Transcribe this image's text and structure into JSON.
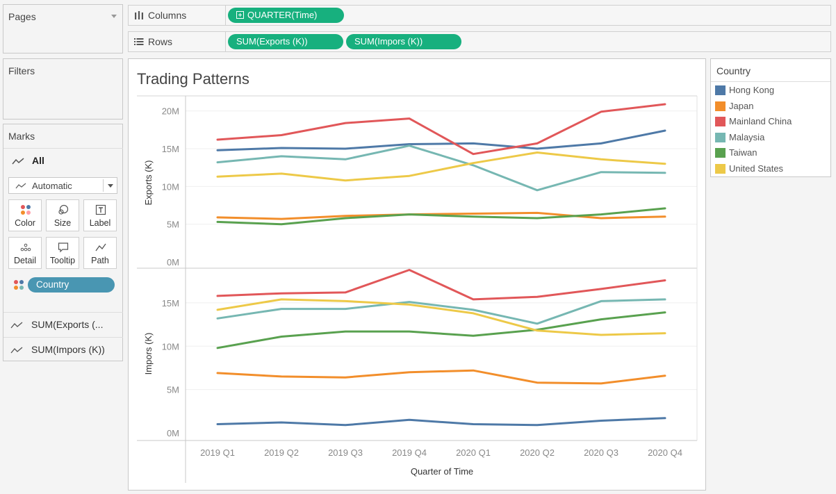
{
  "pages": {
    "title": "Pages"
  },
  "filters": {
    "title": "Filters"
  },
  "columns_shelf": {
    "label": "Columns",
    "pills": [
      "QUARTER(Time)"
    ]
  },
  "rows_shelf": {
    "label": "Rows",
    "pills": [
      "SUM(Exports (K))",
      "SUM(Impors (K))"
    ]
  },
  "marks": {
    "title": "Marks",
    "all_label": "All",
    "mark_type": "Automatic",
    "buttons": [
      "Color",
      "Size",
      "Label",
      "Detail",
      "Tooltip",
      "Path"
    ],
    "field_pill": "Country",
    "measures": [
      "SUM(Exports (...",
      "SUM(Impors (K))"
    ]
  },
  "legend": {
    "title": "Country",
    "items": [
      {
        "label": "Hong Kong",
        "color": "#4e79a7"
      },
      {
        "label": "Japan",
        "color": "#f28e2b"
      },
      {
        "label": "Mainland China",
        "color": "#e15759"
      },
      {
        "label": "Malaysia",
        "color": "#76b7b2"
      },
      {
        "label": "Taiwan",
        "color": "#59a14f"
      },
      {
        "label": "United States",
        "color": "#edc948"
      }
    ]
  },
  "chart_data": {
    "type": "line",
    "title": "Trading Patterns",
    "xlabel": "Quarter of Time",
    "categories": [
      "2019 Q1",
      "2019 Q2",
      "2019 Q3",
      "2019 Q4",
      "2020 Q1",
      "2020 Q2",
      "2020 Q3",
      "2020 Q4"
    ],
    "panes": [
      {
        "ylabel": "Exports (K)",
        "ylim": [
          0,
          22
        ],
        "yticks": [
          "0M",
          "5M",
          "10M",
          "15M",
          "20M"
        ],
        "series": [
          {
            "name": "Hong Kong",
            "values": [
              14.8,
              15.1,
              15.0,
              15.6,
              15.7,
              15.0,
              15.7,
              17.4
            ]
          },
          {
            "name": "Japan",
            "values": [
              5.9,
              5.7,
              6.1,
              6.3,
              6.4,
              6.5,
              5.8,
              6.0
            ]
          },
          {
            "name": "Mainland China",
            "values": [
              16.2,
              16.8,
              18.4,
              19.0,
              14.3,
              15.7,
              19.9,
              20.9
            ]
          },
          {
            "name": "Malaysia",
            "values": [
              13.2,
              14.0,
              13.6,
              15.4,
              12.8,
              9.5,
              11.9,
              11.8
            ]
          },
          {
            "name": "Taiwan",
            "values": [
              5.3,
              5.0,
              5.8,
              6.3,
              6.0,
              5.8,
              6.3,
              7.1
            ]
          },
          {
            "name": "United States",
            "values": [
              11.3,
              11.7,
              10.8,
              11.4,
              13.1,
              14.5,
              13.6,
              13.0
            ]
          }
        ]
      },
      {
        "ylabel": "Impors (K)",
        "ylim": [
          0,
          19
        ],
        "yticks": [
          "0M",
          "5M",
          "10M",
          "15M"
        ],
        "series": [
          {
            "name": "Hong Kong",
            "values": [
              1.0,
              1.2,
              0.9,
              1.5,
              1.0,
              0.9,
              1.4,
              1.7
            ]
          },
          {
            "name": "Japan",
            "values": [
              6.9,
              6.5,
              6.4,
              7.0,
              7.2,
              5.8,
              5.7,
              6.6
            ]
          },
          {
            "name": "Mainland China",
            "values": [
              15.8,
              16.1,
              16.2,
              18.8,
              15.4,
              15.7,
              16.6,
              17.6
            ]
          },
          {
            "name": "Malaysia",
            "values": [
              13.2,
              14.3,
              14.3,
              15.1,
              14.2,
              12.6,
              15.2,
              15.4
            ]
          },
          {
            "name": "Taiwan",
            "values": [
              9.8,
              11.1,
              11.7,
              11.7,
              11.2,
              11.9,
              13.1,
              13.9
            ]
          },
          {
            "name": "United States",
            "values": [
              14.2,
              15.4,
              15.2,
              14.8,
              13.8,
              11.8,
              11.3,
              11.5
            ]
          }
        ]
      }
    ]
  }
}
